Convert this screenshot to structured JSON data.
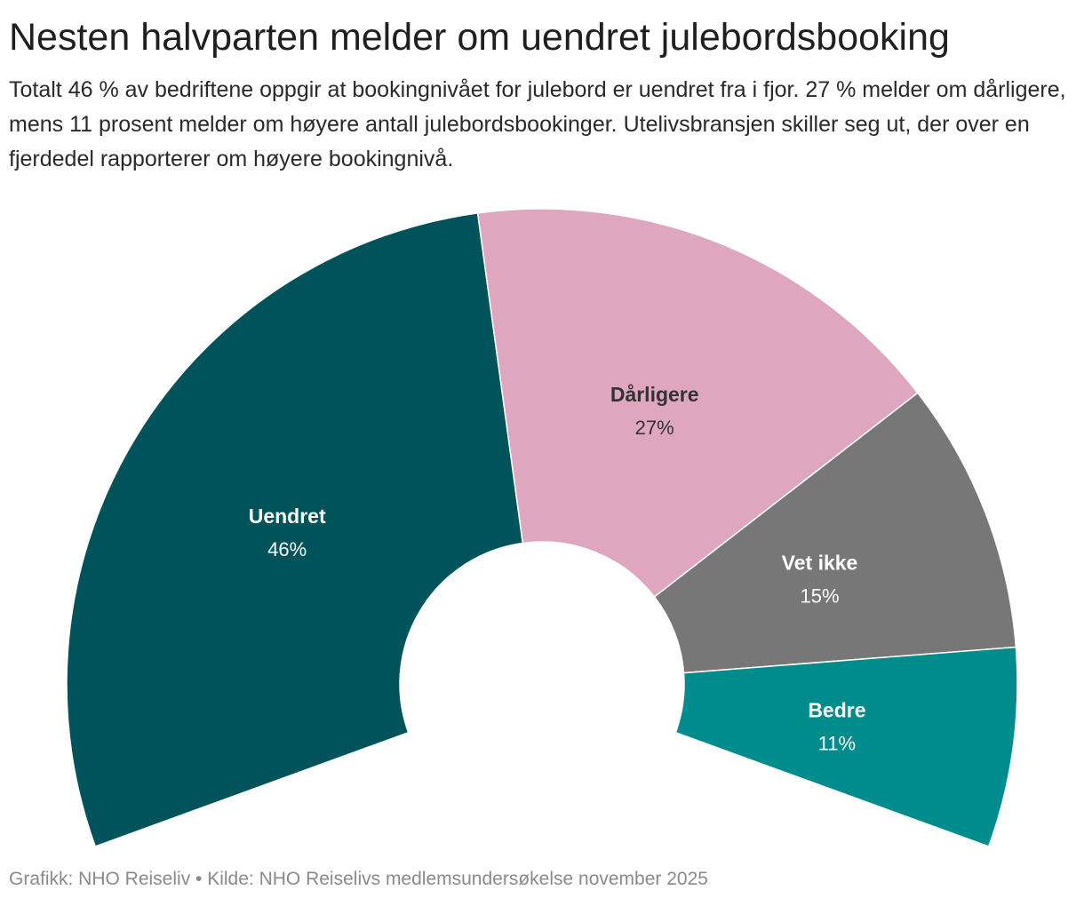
{
  "title": "Nesten halvparten melder om uendret julebordsbooking",
  "subtitle": "Totalt 46 % av bedriftene oppgir at bookingnivået for julebord er uendret fra i fjor. 27 % melder om dårligere, mens 11 prosent melder om høyere antall julebordsbookinger. Utelivsbransjen skiller seg ut, der over en fjerdedel rapporterer om høyere bookingnivå.",
  "footer": "Grafikk: NHO Reiseliv • Kilde: NHO Reiselivs medlemsundersøkelse november 2025",
  "chart_data": {
    "type": "pie",
    "variant": "semi-donut",
    "title": "Nesten halvparten melder om uendret julebordsbooking",
    "series": [
      {
        "values": [
          46,
          27,
          15,
          11
        ],
        "categories": [
          "Uendret",
          "Dårligere",
          "Vet ikke",
          "Bedre"
        ]
      }
    ],
    "slices": [
      {
        "label": "Uendret",
        "value": 46,
        "display": "46%",
        "color": "#00535a",
        "text_color": "#ffffff"
      },
      {
        "label": "Dårligere",
        "value": 27,
        "display": "27%",
        "color": "#dfa7bf",
        "text_color": "#333333"
      },
      {
        "label": "Vet ikke",
        "value": 15,
        "display": "15%",
        "color": "#777777",
        "text_color": "#ffffff"
      },
      {
        "label": "Bedre",
        "value": 11,
        "display": "11%",
        "color": "#008b8d",
        "text_color": "#ffffff"
      }
    ],
    "legend": "none",
    "data_labels": "inside"
  }
}
